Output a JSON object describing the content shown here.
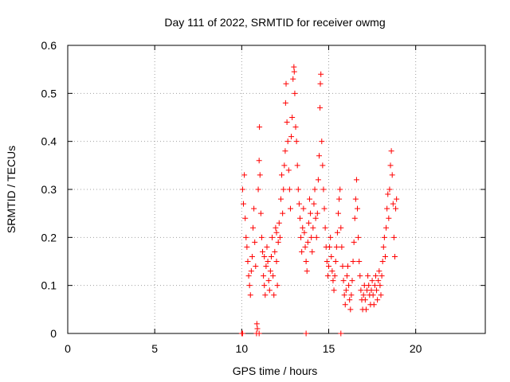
{
  "chart_data": {
    "type": "scatter",
    "title": "Day 111 of 2022, SRMTID for receiver owmg",
    "xlabel": "GPS time / hours",
    "ylabel": "SRMTID / TECUs",
    "xlim": [
      0,
      24
    ],
    "ylim": [
      0,
      0.6
    ],
    "xticks": [
      0,
      5,
      10,
      15,
      20
    ],
    "yticks": [
      0,
      0.1,
      0.2,
      0.3,
      0.4,
      0.5,
      0.6
    ],
    "grid": true,
    "marker": "+",
    "color": "#ff0000",
    "series": [
      {
        "name": "SRMTID",
        "points": [
          [
            10.0,
            0.0
          ],
          [
            10.05,
            0.3
          ],
          [
            10.1,
            0.27
          ],
          [
            10.15,
            0.33
          ],
          [
            10.2,
            0.24
          ],
          [
            10.25,
            0.2
          ],
          [
            10.3,
            0.18
          ],
          [
            10.35,
            0.15
          ],
          [
            10.4,
            0.12
          ],
          [
            10.45,
            0.1
          ],
          [
            10.5,
            0.08
          ],
          [
            10.55,
            0.13
          ],
          [
            10.6,
            0.16
          ],
          [
            10.65,
            0.22
          ],
          [
            10.7,
            0.26
          ],
          [
            10.75,
            0.19
          ],
          [
            10.8,
            0.14
          ],
          [
            10.85,
            0.0
          ],
          [
            10.87,
            0.02
          ],
          [
            10.9,
            0.01
          ],
          [
            10.95,
            0.3
          ],
          [
            11.0,
            0.36
          ],
          [
            11.02,
            0.43
          ],
          [
            11.05,
            0.33
          ],
          [
            11.1,
            0.25
          ],
          [
            11.15,
            0.2
          ],
          [
            11.2,
            0.17
          ],
          [
            11.25,
            0.12
          ],
          [
            11.3,
            0.1
          ],
          [
            11.35,
            0.08
          ],
          [
            11.4,
            0.14
          ],
          [
            11.45,
            0.18
          ],
          [
            11.5,
            0.15
          ],
          [
            11.55,
            0.11
          ],
          [
            11.6,
            0.09
          ],
          [
            11.65,
            0.13
          ],
          [
            11.7,
            0.16
          ],
          [
            11.75,
            0.2
          ],
          [
            11.8,
            0.12
          ],
          [
            11.85,
            0.08
          ],
          [
            11.9,
            0.17
          ],
          [
            11.95,
            0.22
          ],
          [
            12.0,
            0.15
          ],
          [
            12.05,
            0.1
          ],
          [
            12.1,
            0.19
          ],
          [
            12.15,
            0.23
          ],
          [
            12.2,
            0.2
          ],
          [
            12.25,
            0.28
          ],
          [
            12.3,
            0.33
          ],
          [
            12.35,
            0.25
          ],
          [
            12.4,
            0.3
          ],
          [
            12.45,
            0.35
          ],
          [
            12.5,
            0.38
          ],
          [
            12.52,
            0.48
          ],
          [
            12.55,
            0.52
          ],
          [
            12.6,
            0.44
          ],
          [
            12.65,
            0.4
          ],
          [
            12.7,
            0.34
          ],
          [
            12.75,
            0.3
          ],
          [
            12.8,
            0.26
          ],
          [
            12.85,
            0.41
          ],
          [
            12.9,
            0.45
          ],
          [
            12.95,
            0.53
          ],
          [
            13.0,
            0.555
          ],
          [
            13.02,
            0.545
          ],
          [
            13.05,
            0.5
          ],
          [
            13.1,
            0.43
          ],
          [
            13.15,
            0.4
          ],
          [
            13.2,
            0.35
          ],
          [
            13.25,
            0.3
          ],
          [
            13.3,
            0.27
          ],
          [
            13.35,
            0.24
          ],
          [
            13.4,
            0.2
          ],
          [
            13.45,
            0.17
          ],
          [
            13.5,
            0.22
          ],
          [
            13.55,
            0.26
          ],
          [
            13.6,
            0.21
          ],
          [
            13.65,
            0.18
          ],
          [
            13.7,
            0.15
          ],
          [
            13.75,
            0.13
          ],
          [
            13.8,
            0.19
          ],
          [
            13.85,
            0.23
          ],
          [
            13.9,
            0.28
          ],
          [
            13.95,
            0.25
          ],
          [
            14.0,
            0.2
          ],
          [
            14.05,
            0.17
          ],
          [
            14.1,
            0.22
          ],
          [
            14.15,
            0.27
          ],
          [
            14.2,
            0.3
          ],
          [
            14.25,
            0.24
          ],
          [
            14.3,
            0.2
          ],
          [
            14.35,
            0.25
          ],
          [
            14.4,
            0.32
          ],
          [
            14.45,
            0.37
          ],
          [
            14.5,
            0.47
          ],
          [
            14.52,
            0.52
          ],
          [
            14.55,
            0.54
          ],
          [
            14.6,
            0.4
          ],
          [
            14.65,
            0.35
          ],
          [
            14.7,
            0.3
          ],
          [
            14.75,
            0.26
          ],
          [
            14.8,
            0.22
          ],
          [
            14.85,
            0.18
          ],
          [
            14.9,
            0.15
          ],
          [
            14.95,
            0.12
          ],
          [
            15.0,
            0.14
          ],
          [
            15.05,
            0.18
          ],
          [
            15.1,
            0.2
          ],
          [
            15.15,
            0.16
          ],
          [
            15.2,
            0.13
          ],
          [
            15.25,
            0.11
          ],
          [
            15.3,
            0.09
          ],
          [
            15.35,
            0.12
          ],
          [
            15.4,
            0.15
          ],
          [
            15.45,
            0.18
          ],
          [
            15.5,
            0.21
          ],
          [
            15.55,
            0.25
          ],
          [
            15.6,
            0.28
          ],
          [
            15.65,
            0.3
          ],
          [
            15.7,
            0.22
          ],
          [
            15.75,
            0.18
          ],
          [
            15.8,
            0.14
          ],
          [
            15.85,
            0.11
          ],
          [
            15.9,
            0.08
          ],
          [
            15.95,
            0.06
          ],
          [
            16.0,
            0.09
          ],
          [
            16.05,
            0.12
          ],
          [
            16.1,
            0.14
          ],
          [
            16.15,
            0.1
          ],
          [
            16.2,
            0.07
          ],
          [
            16.25,
            0.05
          ],
          [
            16.3,
            0.08
          ],
          [
            16.35,
            0.11
          ],
          [
            16.4,
            0.15
          ],
          [
            16.45,
            0.19
          ],
          [
            16.5,
            0.24
          ],
          [
            16.55,
            0.28
          ],
          [
            16.6,
            0.32
          ],
          [
            16.65,
            0.26
          ],
          [
            16.7,
            0.2
          ],
          [
            16.75,
            0.15
          ],
          [
            16.8,
            0.12
          ],
          [
            16.85,
            0.09
          ],
          [
            16.9,
            0.07
          ],
          [
            16.95,
            0.05
          ],
          [
            17.0,
            0.08
          ],
          [
            17.05,
            0.1
          ],
          [
            17.1,
            0.07
          ],
          [
            17.15,
            0.05
          ],
          [
            17.2,
            0.09
          ],
          [
            17.25,
            0.12
          ],
          [
            17.3,
            0.1
          ],
          [
            17.35,
            0.08
          ],
          [
            17.4,
            0.06
          ],
          [
            17.45,
            0.09
          ],
          [
            17.5,
            0.11
          ],
          [
            17.55,
            0.08
          ],
          [
            17.6,
            0.06
          ],
          [
            17.65,
            0.1
          ],
          [
            17.7,
            0.12
          ],
          [
            17.75,
            0.09
          ],
          [
            17.8,
            0.07
          ],
          [
            17.85,
            0.11
          ],
          [
            17.9,
            0.13
          ],
          [
            17.95,
            0.1
          ],
          [
            18.0,
            0.08
          ],
          [
            18.05,
            0.12
          ],
          [
            18.1,
            0.15
          ],
          [
            18.15,
            0.18
          ],
          [
            18.2,
            0.2
          ],
          [
            18.25,
            0.16
          ],
          [
            18.3,
            0.22
          ],
          [
            18.35,
            0.26
          ],
          [
            18.4,
            0.29
          ],
          [
            18.45,
            0.24
          ],
          [
            18.5,
            0.3
          ],
          [
            18.55,
            0.35
          ],
          [
            18.6,
            0.38
          ],
          [
            18.65,
            0.33
          ],
          [
            18.7,
            0.27
          ],
          [
            18.75,
            0.2
          ],
          [
            18.8,
            0.16
          ],
          [
            18.85,
            0.26
          ],
          [
            18.9,
            0.28
          ],
          [
            11.0,
            0.0
          ],
          [
            13.7,
            0.0
          ],
          [
            15.7,
            0.0
          ],
          [
            10.05,
            0.0
          ],
          [
            11.3,
            0.16
          ],
          [
            12.0,
            0.21
          ]
        ]
      }
    ]
  }
}
